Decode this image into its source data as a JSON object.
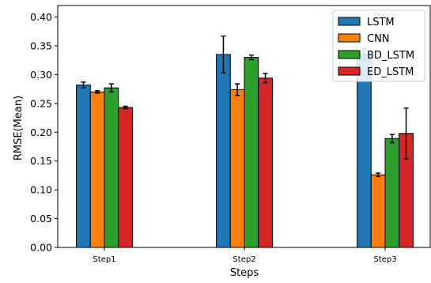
{
  "chart_data": {
    "type": "bar",
    "categories": [
      "Step1",
      "Step2",
      "Step3"
    ],
    "series": [
      {
        "name": "LSTM",
        "color": "#1f77b4",
        "values": [
          0.282,
          0.335,
          0.335
        ],
        "errors": [
          0.005,
          0.032,
          0.01
        ]
      },
      {
        "name": "CNN",
        "color": "#ff7f0e",
        "values": [
          0.27,
          0.274,
          0.126
        ],
        "errors": [
          0.002,
          0.01,
          0.003
        ]
      },
      {
        "name": "BD_LSTM",
        "color": "#2ca02c",
        "values": [
          0.277,
          0.33,
          0.189
        ],
        "errors": [
          0.007,
          0.004,
          0.007
        ]
      },
      {
        "name": "ED_LSTM",
        "color": "#d62728",
        "values": [
          0.243,
          0.294,
          0.198
        ],
        "errors": [
          0.002,
          0.008,
          0.044
        ]
      }
    ],
    "xlabel": "Steps",
    "ylabel": "RMSE(Mean)",
    "ylim": [
      0,
      0.42
    ],
    "yticks": [
      "0.00",
      "0.05",
      "0.10",
      "0.15",
      "0.20",
      "0.25",
      "0.30",
      "0.35",
      "0.40"
    ],
    "grid": false,
    "legend_position": "top-right"
  }
}
